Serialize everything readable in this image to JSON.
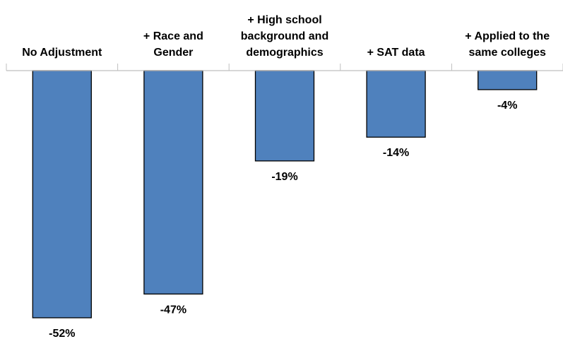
{
  "chart_data": {
    "type": "bar",
    "categories": [
      "No Adjustment",
      "+ Race and\nGender",
      "+ High school\nbackground and\ndemographics",
      "+ SAT data",
      "+ Applied to the\nsame colleges"
    ],
    "values": [
      -52,
      -47,
      -19,
      -14,
      -4
    ],
    "value_labels": [
      "-52%",
      "-47%",
      "-19%",
      "-14%",
      "-4%"
    ],
    "color": "#4f81bd"
  }
}
